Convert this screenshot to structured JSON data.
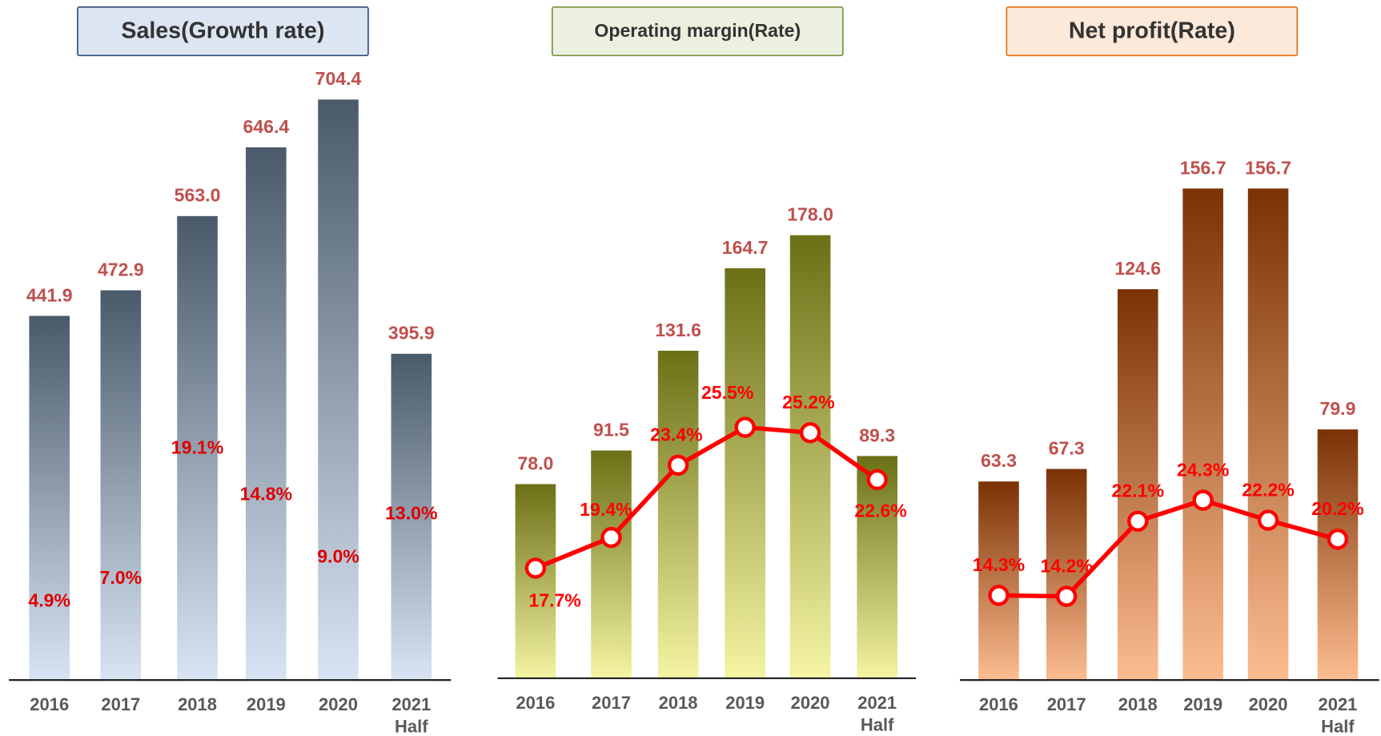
{
  "chart_data": [
    {
      "type": "bar",
      "title": "Sales(Growth rate)",
      "title_fill": "#dce6f2",
      "title_border": "#2f4a7a",
      "categories": [
        "2016",
        "2017",
        "2018",
        "2019",
        "2020",
        "2021\nHalf"
      ],
      "values": [
        441.9,
        472.9,
        563.0,
        646.4,
        704.4,
        395.9
      ],
      "value_labels": [
        "441.9",
        "472.9",
        "563.0",
        "646.4",
        "704.4",
        "395.9"
      ],
      "color_top": "#4a5a6b",
      "color_bottom": "#d8e4f3",
      "rate": {
        "values": [
          4.9,
          7.0,
          19.1,
          14.8,
          9.0,
          13.0
        ],
        "value_labels": [
          "4.9%",
          "7.0%",
          "19.1%",
          "14.8%",
          "9.0%",
          "13.0%"
        ],
        "line": false,
        "color": "#e00000"
      }
    },
    {
      "type": "bar",
      "title": "Operating margin(Rate)",
      "title_fill": "#ebf1de",
      "title_border": "#77933c",
      "categories": [
        "2016",
        "2017",
        "2018",
        "2019",
        "2020",
        "2021\nHalf"
      ],
      "values": [
        78.0,
        91.5,
        131.6,
        164.7,
        178.0,
        89.3
      ],
      "value_labels": [
        "78.0",
        "91.5",
        "131.6",
        "164.7",
        "178.0",
        "89.3"
      ],
      "color_top": "#6b7016",
      "color_bottom": "#f4f4a2",
      "rate": {
        "values": [
          17.7,
          19.4,
          23.4,
          25.5,
          25.2,
          22.6
        ],
        "value_labels": [
          "17.7%",
          "19.4%",
          "23.4%",
          "25.5%",
          "25.2%",
          "22.6%"
        ],
        "line": true,
        "color": "#ff0000"
      }
    },
    {
      "type": "bar",
      "title": "Net profit(Rate)",
      "title_fill": "#fde9d9",
      "title_border": "#e46c0a",
      "categories": [
        "2016",
        "2017",
        "2018",
        "2019",
        "2020",
        "2021\nHalf"
      ],
      "values": [
        63.3,
        67.3,
        124.6,
        156.7,
        156.7,
        79.9
      ],
      "value_labels": [
        "63.3",
        "67.3",
        "124.6",
        "156.7",
        "156.7",
        "79.9"
      ],
      "color_top": "#7a3205",
      "color_bottom": "#fdbd90",
      "rate": {
        "values": [
          14.3,
          14.2,
          22.1,
          24.3,
          22.2,
          20.2
        ],
        "value_labels": [
          "14.3%",
          "14.2%",
          "22.1%",
          "24.3%",
          "22.2%",
          "20.2%"
        ],
        "line": true,
        "color": "#ff0000"
      }
    }
  ]
}
